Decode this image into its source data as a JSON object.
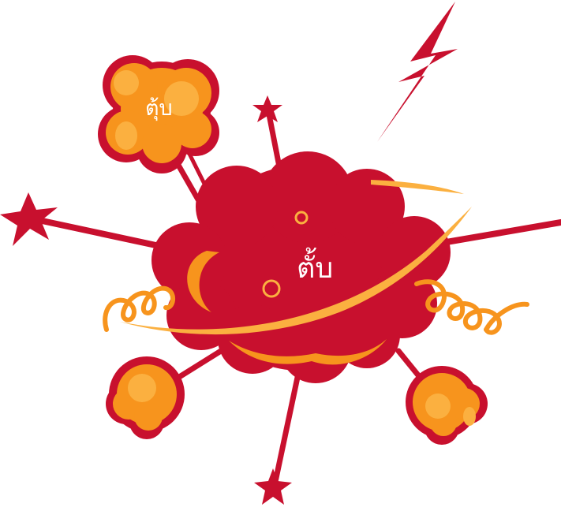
{
  "labels": {
    "main": "ตั้บ",
    "small": "ตุ้บ"
  },
  "colors": {
    "red": "#c8102e",
    "orange": "#f7941d",
    "light_orange": "#fbb040",
    "highlight": "#fcc87a",
    "background": "#ffffff"
  },
  "icons": [
    "explosion-cloud",
    "puff-cloud",
    "lightning-bolt",
    "star-burst",
    "spiral-swirl"
  ]
}
